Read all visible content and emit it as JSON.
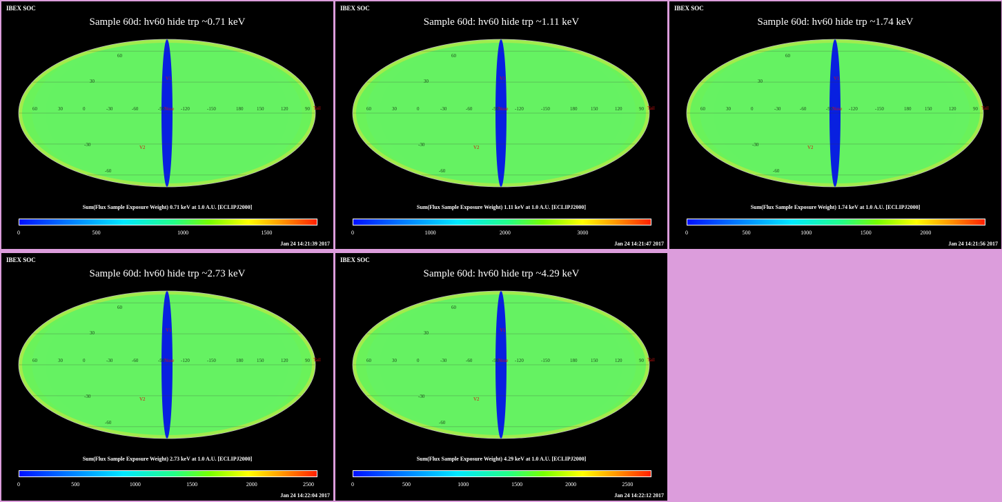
{
  "panels": [
    {
      "soc": "IBEX SOC",
      "title": "Sample 60d: hv60 hide trp ~0.71 keV",
      "caption": "Sum(Flux Sample Exposure Weight)  0.71 keV at 1.0 A.U. [ECLIPJ2000]",
      "ticks": [
        "0",
        "500",
        "1000",
        "1500"
      ],
      "tick_fracs": [
        0,
        0.26,
        0.55,
        0.83
      ],
      "timestamp": "Jan 24 14:21:39 2017"
    },
    {
      "soc": "IBEX SOC",
      "title": "Sample 60d: hv60 hide trp ~1.11 keV",
      "caption": "Sum(Flux Sample Exposure Weight)  1.11 keV at 1.0 A.U. [ECLIPJ2000]",
      "ticks": [
        "0",
        "1000",
        "2000",
        "3000"
      ],
      "tick_fracs": [
        0,
        0.26,
        0.51,
        0.77
      ],
      "timestamp": "Jan 24 14:21:47 2017"
    },
    {
      "soc": "IBEX SOC",
      "title": "Sample 60d: hv60 hide trp ~1.74 keV",
      "caption": "Sum(Flux Sample Exposure Weight)  1.74 keV at 1.0 A.U. [ECLIPJ2000]",
      "ticks": [
        "0",
        "500",
        "1000",
        "1500",
        "2000"
      ],
      "tick_fracs": [
        0,
        0.2,
        0.4,
        0.6,
        0.8
      ],
      "timestamp": "Jan 24 14:21:56 2017"
    },
    {
      "soc": "IBEX SOC",
      "title": "Sample 60d: hv60 hide trp ~2.73 keV",
      "caption": "Sum(Flux Sample Exposure Weight)  2.73 keV at 1.0 A.U. [ECLIPJ2000]",
      "ticks": [
        "0",
        "500",
        "1000",
        "1500",
        "2000",
        "2500"
      ],
      "tick_fracs": [
        0,
        0.19,
        0.39,
        0.58,
        0.78,
        0.97
      ],
      "timestamp": "Jan 24 14:22:04 2017"
    },
    {
      "soc": "IBEX SOC",
      "title": "Sample 60d: hv60 hide trp ~4.29 keV",
      "caption": "Sum(Flux Sample Exposure Weight)  4.29 keV at 1.0 A.U. [ECLIPJ2000]",
      "ticks": [
        "0",
        "500",
        "1000",
        "1500",
        "2000",
        "2500"
      ],
      "tick_fracs": [
        0,
        0.18,
        0.37,
        0.55,
        0.73,
        0.92
      ],
      "timestamp": "Jan 24 14:22:12 2017"
    }
  ],
  "map_labels": {
    "lon": [
      "60",
      "30",
      "0",
      "-30",
      "-60",
      "-90",
      "-120",
      "-150",
      "180",
      "150",
      "120",
      "90"
    ],
    "lat": [
      "60",
      "30",
      "-30",
      "-60"
    ],
    "markers": {
      "v1": "V1",
      "v2": "V2",
      "nose": "Nose",
      "tail": "Tail"
    }
  },
  "colors": {
    "background": "#dc9ddc",
    "panel": "#000000",
    "marker": "#d01010"
  }
}
